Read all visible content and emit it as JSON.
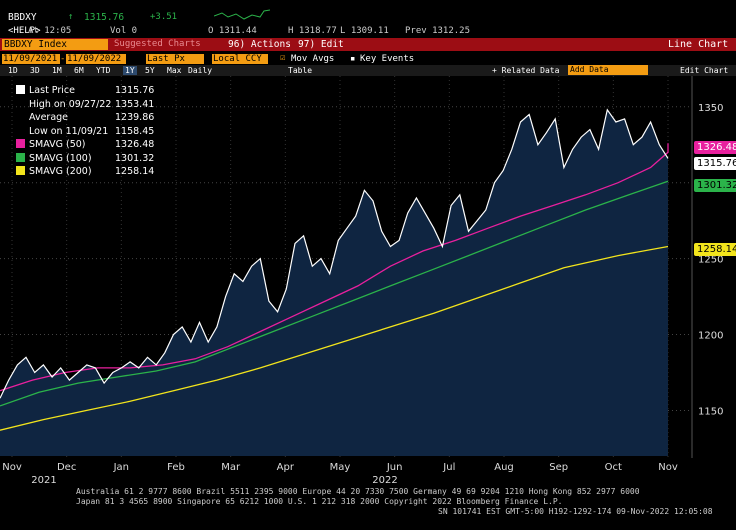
{
  "header": {
    "ticker": "BBDXY",
    "arrow": "↑",
    "last": "1315.76",
    "change": "+3.51",
    "time_label": "At 12:05",
    "vol_label": "Vol 0",
    "open": "O 1311.44",
    "high": "H 1318.77",
    "low": "L 1309.11",
    "prev": "Prev 1312.25",
    "fn_key": "<HELP>",
    "index_label": "BBDXY Index",
    "suggest": "Suggested Charts",
    "actions": "96) Actions",
    "edit": "97) Edit",
    "chart_type": "Line Chart"
  },
  "range": {
    "start": "11/09/2021",
    "end": "11/09/2022",
    "last_px": "Last Px",
    "currency": "Local CCY",
    "mov_avgs": "Mov Avgs",
    "key_events": "Key Events"
  },
  "toolbar": {
    "periods": [
      "1D",
      "3D",
      "1M",
      "6M",
      "YTD",
      "1Y",
      "5Y",
      "Max"
    ],
    "active": "1Y",
    "freq": "Daily",
    "table": "Table",
    "related": "+ Related Data",
    "add_data": "Add Data",
    "edit_chart": "Edit Chart"
  },
  "legend": {
    "rows": [
      {
        "label": "Last Price",
        "value": "1315.76",
        "color": "#ffffff"
      },
      {
        "label": "High on 09/27/22",
        "value": "1353.41",
        "color": "#ffffff"
      },
      {
        "label": "Average",
        "value": "1239.86",
        "color": "#ffffff"
      },
      {
        "label": "Low on 11/09/21",
        "value": "1158.45",
        "color": "#ffffff"
      },
      {
        "label": "SMAVG (50)",
        "value": "1326.48",
        "color": "#e8209e"
      },
      {
        "label": "SMAVG (100)",
        "value": "1301.32",
        "color": "#2bb34a"
      },
      {
        "label": "SMAVG (200)",
        "value": "1258.14",
        "color": "#f2e41c"
      }
    ]
  },
  "tags": {
    "last": "1315.76",
    "sma50": "1326.48",
    "sma100": "1301.32",
    "sma200": "1258.14"
  },
  "footer": {
    "line1": "Australia 61 2 9777 8600 Brazil 5511 2395 9000 Europe 44 20 7330 7500 Germany 49 69 9204 1210 Hong Kong 852 2977 6000",
    "line2": "Japan 81 3 4565 8900     Singapore 65 6212 1000     U.S. 1 212 318 2000        Copyright 2022 Bloomberg Finance L.P.",
    "line3": "SN 101741 EST  GMT-5:00 H192-1292-174 09-Nov-2022 12:05:08"
  },
  "chart_data": {
    "type": "line",
    "ylim": [
      1120,
      1365
    ],
    "yticks": [
      1150,
      1200,
      1250,
      1300,
      1350
    ],
    "xlabels": [
      "Nov",
      "Dec",
      "Jan",
      "Feb",
      "Mar",
      "Apr",
      "May",
      "Jun",
      "Jul",
      "Aug",
      "Sep",
      "Oct",
      "Nov"
    ],
    "years": [
      "2021",
      "2022"
    ],
    "series": [
      {
        "name": "Last Price",
        "color": "#ffffff",
        "values": [
          1158,
          1170,
          1180,
          1185,
          1175,
          1180,
          1172,
          1178,
          1170,
          1175,
          1180,
          1178,
          1168,
          1175,
          1178,
          1182,
          1178,
          1185,
          1180,
          1188,
          1200,
          1205,
          1195,
          1208,
          1195,
          1205,
          1225,
          1240,
          1235,
          1245,
          1250,
          1222,
          1215,
          1230,
          1260,
          1265,
          1245,
          1250,
          1240,
          1262,
          1270,
          1278,
          1295,
          1288,
          1268,
          1258,
          1262,
          1280,
          1290,
          1280,
          1270,
          1258,
          1285,
          1292,
          1268,
          1275,
          1282,
          1300,
          1308,
          1322,
          1340,
          1345,
          1325,
          1333,
          1342,
          1310,
          1322,
          1330,
          1335,
          1322,
          1348,
          1340,
          1342,
          1325,
          1330,
          1340,
          1325,
          1316
        ],
        "x": [
          0,
          4,
          8,
          12,
          16,
          20,
          24,
          28,
          32,
          36,
          40,
          44,
          48,
          52,
          56,
          60,
          64,
          68,
          72,
          76,
          80,
          84,
          88,
          92,
          96,
          100,
          104,
          108,
          112,
          116,
          120,
          124,
          128,
          132,
          136,
          140,
          144,
          148,
          152,
          156,
          160,
          164,
          168,
          172,
          176,
          180,
          184,
          188,
          192,
          196,
          200,
          204,
          208,
          212,
          216,
          220,
          224,
          228,
          232,
          236,
          240,
          244,
          248,
          252,
          256,
          260,
          264,
          268,
          272,
          276,
          280,
          284,
          288,
          292,
          296,
          300,
          304,
          308
        ]
      },
      {
        "name": "SMAVG (50)",
        "color": "#e8209e",
        "values": [
          1163,
          1170,
          1175,
          1178,
          1178,
          1180,
          1184,
          1192,
          1202,
          1212,
          1222,
          1232,
          1245,
          1255,
          1262,
          1270,
          1278,
          1285,
          1292,
          1300,
          1310,
          1320,
          1326
        ],
        "x": [
          0,
          15,
          30,
          45,
          60,
          75,
          90,
          105,
          120,
          135,
          150,
          165,
          180,
          195,
          210,
          225,
          240,
          255,
          270,
          285,
          300,
          308,
          308
        ]
      },
      {
        "name": "SMAVG (100)",
        "color": "#2bb34a",
        "values": [
          1153,
          1162,
          1168,
          1172,
          1176,
          1182,
          1192,
          1202,
          1212,
          1222,
          1232,
          1242,
          1252,
          1262,
          1272,
          1282,
          1292,
          1301
        ],
        "x": [
          0,
          18,
          36,
          54,
          72,
          90,
          108,
          126,
          144,
          162,
          180,
          198,
          216,
          234,
          252,
          270,
          290,
          308
        ]
      },
      {
        "name": "SMAVG (200)",
        "color": "#f2e41c",
        "values": [
          1137,
          1144,
          1150,
          1156,
          1163,
          1170,
          1178,
          1187,
          1196,
          1205,
          1214,
          1224,
          1234,
          1244,
          1252,
          1258
        ],
        "x": [
          0,
          20,
          40,
          60,
          80,
          100,
          120,
          140,
          160,
          180,
          200,
          220,
          240,
          260,
          285,
          308
        ]
      }
    ]
  }
}
